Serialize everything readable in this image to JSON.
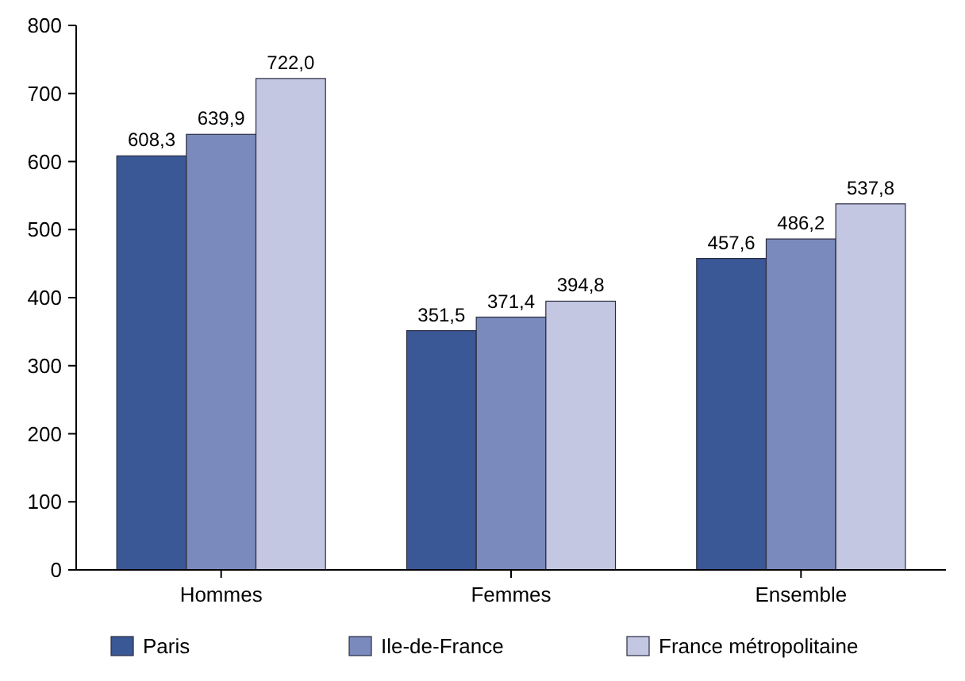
{
  "chart_data": {
    "type": "bar",
    "categories": [
      "Hommes",
      "Femmes",
      "Ensemble"
    ],
    "series": [
      {
        "name": "Paris",
        "color": "#3a5796",
        "values": [
          608.3,
          351.5,
          457.6
        ],
        "value_labels": [
          "608,3",
          "351,5",
          "457,6"
        ]
      },
      {
        "name": "Ile-de-France",
        "color": "#7a8abd",
        "values": [
          639.9,
          371.4,
          486.2
        ],
        "value_labels": [
          "639,9",
          "371,4",
          "486,2"
        ]
      },
      {
        "name": "France métropolitaine",
        "color": "#c3c7e2",
        "values": [
          722.0,
          394.8,
          537.8
        ],
        "value_labels": [
          "722,0",
          "394,8",
          "537,8"
        ]
      }
    ],
    "ylim": [
      0,
      800
    ],
    "yticks": [
      0,
      100,
      200,
      300,
      400,
      500,
      600,
      700,
      800
    ],
    "grid": false,
    "legend": "bottom"
  }
}
